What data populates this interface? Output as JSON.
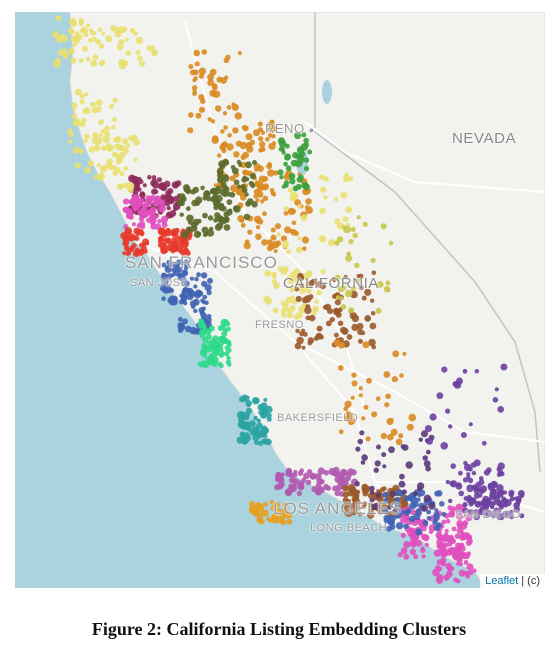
{
  "map": {
    "labels": {
      "reno": "RENO",
      "nevada": "NEVADA",
      "san_francisco": "SAN FRANCISCO",
      "california": "CALIFORNIA",
      "san_jose": "SAN JOSE",
      "fresno": "FRESNO",
      "bakersfield": "BAKERSFIELD",
      "los_angeles": "LOS ANGELES",
      "long_beach": "LONG BEACH",
      "san_diego": "SAN DIEGO"
    },
    "colors": {
      "ocean": "#aad3df",
      "land": "#f2f2ef",
      "border": "#c9c9c9",
      "road": "#ffffff"
    },
    "cluster_colors": [
      "#e8e070",
      "#d98a1f",
      "#8e2a5a",
      "#e04fbe",
      "#5b6a2a",
      "#2aa3a3",
      "#3f63b5",
      "#e83a2a",
      "#6b3fa0",
      "#2ed98a",
      "#9b5a2a",
      "#c8c84a",
      "#e6a020",
      "#b05ab0",
      "#5a3a7a",
      "#3aa03a"
    ]
  },
  "attribution": {
    "leaflet": "Leaflet",
    "rest": " | (c)"
  },
  "caption": "Figure 2: California Listing Embedding Clusters"
}
